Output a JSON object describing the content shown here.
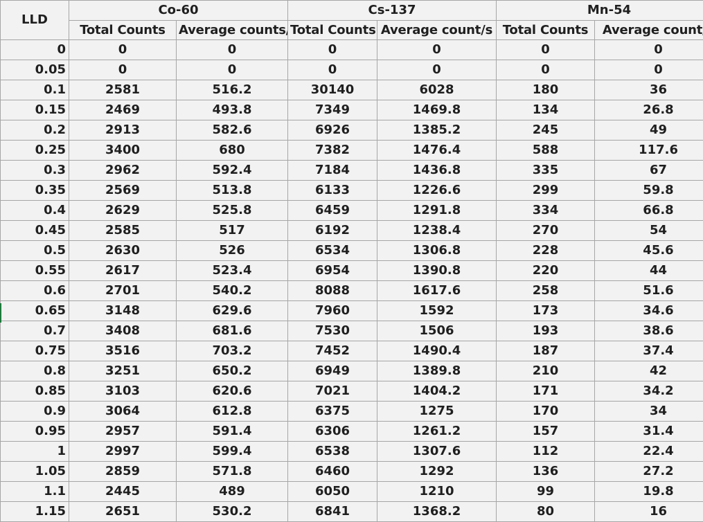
{
  "header": {
    "lld": "LLD",
    "groups": [
      "Co-60",
      "Cs-137",
      "Mn-54"
    ],
    "subheaders": [
      "Total Counts",
      "Average counts/s",
      "Total Counts",
      "Average count/s",
      "Total Counts",
      "Average count/s"
    ]
  },
  "rows": [
    [
      "0",
      "0",
      "0",
      "0",
      "0",
      "0",
      "0"
    ],
    [
      "0.05",
      "0",
      "0",
      "0",
      "0",
      "0",
      "0"
    ],
    [
      "0.1",
      "2581",
      "516.2",
      "30140",
      "6028",
      "180",
      "36"
    ],
    [
      "0.15",
      "2469",
      "493.8",
      "7349",
      "1469.8",
      "134",
      "26.8"
    ],
    [
      "0.2",
      "2913",
      "582.6",
      "6926",
      "1385.2",
      "245",
      "49"
    ],
    [
      "0.25",
      "3400",
      "680",
      "7382",
      "1476.4",
      "588",
      "117.6"
    ],
    [
      "0.3",
      "2962",
      "592.4",
      "7184",
      "1436.8",
      "335",
      "67"
    ],
    [
      "0.35",
      "2569",
      "513.8",
      "6133",
      "1226.6",
      "299",
      "59.8"
    ],
    [
      "0.4",
      "2629",
      "525.8",
      "6459",
      "1291.8",
      "334",
      "66.8"
    ],
    [
      "0.45",
      "2585",
      "517",
      "6192",
      "1238.4",
      "270",
      "54"
    ],
    [
      "0.5",
      "2630",
      "526",
      "6534",
      "1306.8",
      "228",
      "45.6"
    ],
    [
      "0.55",
      "2617",
      "523.4",
      "6954",
      "1390.8",
      "220",
      "44"
    ],
    [
      "0.6",
      "2701",
      "540.2",
      "8088",
      "1617.6",
      "258",
      "51.6"
    ],
    [
      "0.65",
      "3148",
      "629.6",
      "7960",
      "1592",
      "173",
      "34.6"
    ],
    [
      "0.7",
      "3408",
      "681.6",
      "7530",
      "1506",
      "193",
      "38.6"
    ],
    [
      "0.75",
      "3516",
      "703.2",
      "7452",
      "1490.4",
      "187",
      "37.4"
    ],
    [
      "0.8",
      "3251",
      "650.2",
      "6949",
      "1389.8",
      "210",
      "42"
    ],
    [
      "0.85",
      "3103",
      "620.6",
      "7021",
      "1404.2",
      "171",
      "34.2"
    ],
    [
      "0.9",
      "3064",
      "612.8",
      "6375",
      "1275",
      "170",
      "34"
    ],
    [
      "0.95",
      "2957",
      "591.4",
      "6306",
      "1261.2",
      "157",
      "31.4"
    ],
    [
      "1",
      "2997",
      "599.4",
      "6538",
      "1307.6",
      "112",
      "22.4"
    ],
    [
      "1.05",
      "2859",
      "571.8",
      "6460",
      "1292",
      "136",
      "27.2"
    ],
    [
      "1.1",
      "2445",
      "489",
      "6050",
      "1210",
      "99",
      "19.8"
    ],
    [
      "1.15",
      "2651",
      "530.2",
      "6841",
      "1368.2",
      "80",
      "16"
    ]
  ]
}
